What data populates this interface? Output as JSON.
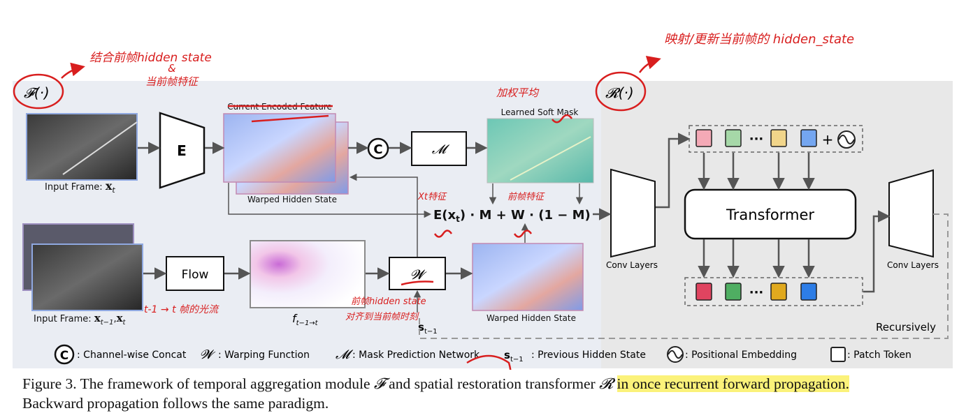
{
  "modules": {
    "temporal_symbol": "𝓕(·)",
    "spatial_symbol": "𝓡(·)"
  },
  "labels": {
    "current_encoded_feature": "Current Encoded Feature",
    "learned_soft_mask": "Learned Soft Mask",
    "warped_hidden_state_top": "Warped Hidden State",
    "warped_hidden_state_bottom": "Warped Hidden State",
    "input_frame_t_prefix": "Input Frame: ",
    "input_frame_t_math": "x",
    "input_frame_t_sub": "t",
    "input_frame_t1_prefix": "Input Frame: ",
    "input_frame_t1_math": "x",
    "input_frame_t1_sub": "t−1",
    "input_frame_t1_sep": ",",
    "input_frame_t1_math2": "x",
    "input_frame_t1_sub2": "t",
    "encoder": "E",
    "concat_symbol": "C",
    "mask_net": "𝓜",
    "flow": "Flow",
    "warp": "𝓦",
    "flow_label_f": "f",
    "flow_label_sub": "t−1→t",
    "prev_state_s": "s",
    "prev_state_sub": "t−1",
    "formula": "E(x",
    "formula_sub": "t",
    "formula_rest": ") · M + W · (1 − M)",
    "conv_layers_left": "Conv Layers",
    "conv_layers_right": "Conv Layers",
    "transformer": "Transformer",
    "recursively": "Recursively",
    "ellipsis": "···",
    "plus": "+"
  },
  "legend": {
    "concat_symbol": "C",
    "concat": ": Channel-wise Concat",
    "warp_symbol": "𝓦",
    "warp": ": Warping Function",
    "mask_symbol": "𝓜",
    "mask": ": Mask Prediction Network",
    "state_symbol": "s",
    "state_sub": "t−1",
    "state": ": Previous Hidden State",
    "pos": ": Positional Embedding",
    "patch": ": Patch Token"
  },
  "caption": {
    "part1": "Figure 3. The framework of temporal aggregation module ",
    "f_symbol": "𝓕",
    "part2": " and spatial restoration transformer ",
    "r_symbol": "𝓡",
    "part3": " ",
    "highlight": "in once recurrent forward propagation.",
    "line2": "Backward propagation follows the same paradigm."
  },
  "annotations": {
    "a1": "结合前帧hidden state",
    "a1b": "&",
    "a1c": "当前帧特征",
    "a2": "映射/更新当前帧的 hidden_state",
    "a3": "加权平均",
    "a4": "Xt特征",
    "a5": "前帧特征",
    "a6": "t-1 → t 帧的光流",
    "a7": "前帧hidden state",
    "a8": "对齐到当前帧时刻"
  },
  "colors": {
    "panel_bg": "#eaedf3",
    "panel_right_bg": "#e8e8e8",
    "annotation_red": "#d81e1e",
    "highlight": "#fbf27a",
    "token_pink": "#f4a9b6",
    "token_green": "#a6d8a8",
    "token_yellow": "#f1d58a",
    "token_blue": "#74a6f0",
    "token_red": "#e04460",
    "token_dgreen": "#4fae62",
    "token_gold": "#e0a91e",
    "token_dblue": "#2d7de6"
  }
}
